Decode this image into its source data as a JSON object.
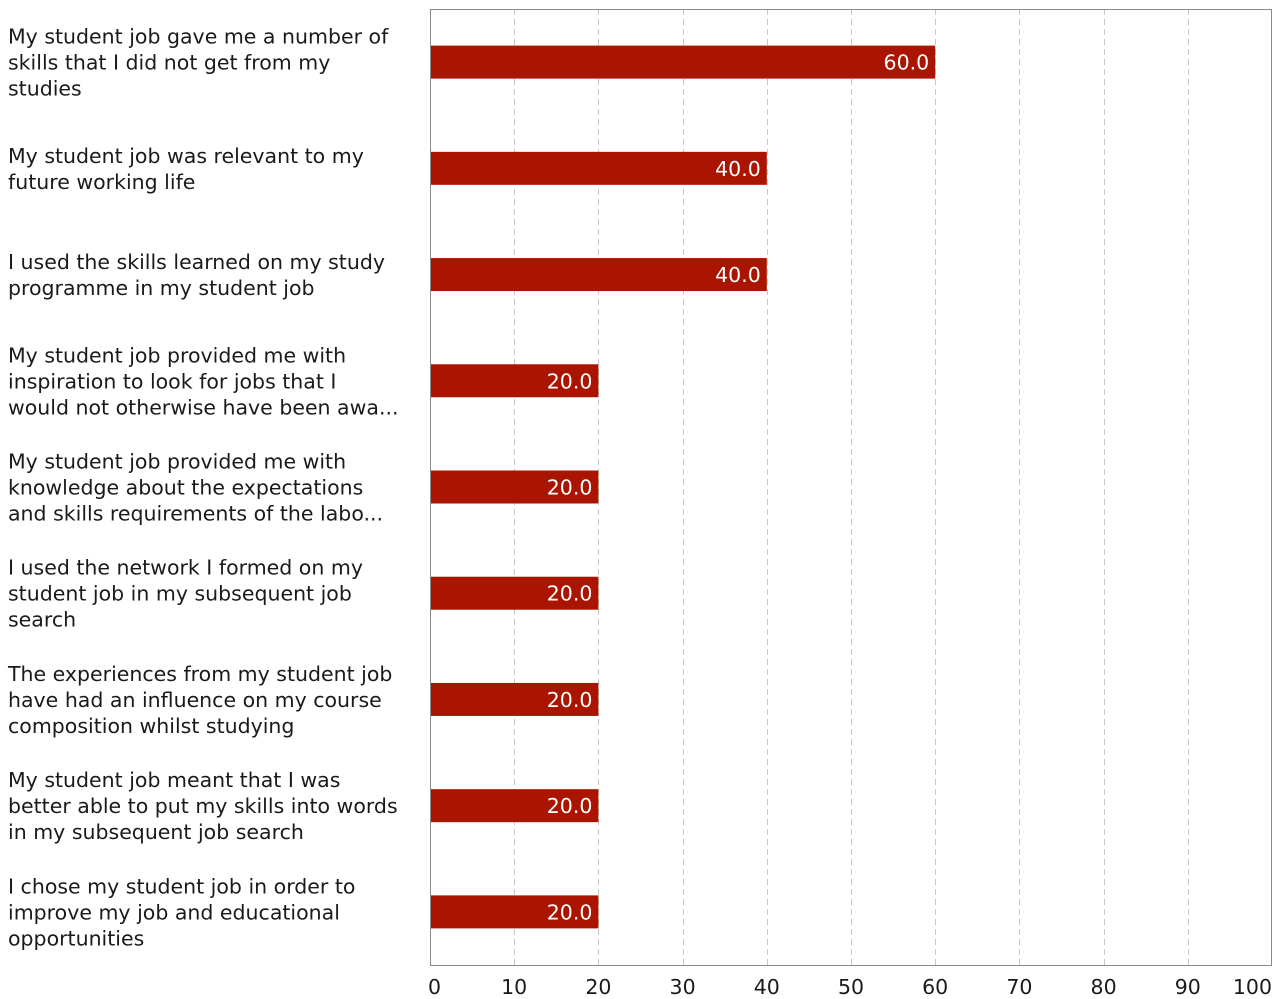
{
  "chart_data": {
    "type": "bar",
    "orientation": "horizontal",
    "categories": [
      [
        "My student job gave me a number of",
        "skills that I did not get from my",
        "studies"
      ],
      [
        "My student job was relevant to my",
        "future working life"
      ],
      [
        "I used the skills learned on my study",
        "programme in my student job"
      ],
      [
        "My student job provided me with",
        "inspiration to look for jobs that I",
        "would not otherwise have been awa..."
      ],
      [
        "My student job provided me with",
        "knowledge about the expectations",
        "and skills requirements of the labo..."
      ],
      [
        "I used the network I formed on my",
        "student job in my subsequent job",
        "search"
      ],
      [
        "The experiences from my student job",
        "have had an influence on my course",
        "composition whilst studying"
      ],
      [
        "My student job meant that I was",
        "better able to put my skills into words",
        "in my subsequent job search"
      ],
      [
        "I chose my student job in order to",
        "improve my job and educational",
        "opportunities"
      ]
    ],
    "values": [
      60.0,
      40.0,
      40.0,
      20.0,
      20.0,
      20.0,
      20.0,
      20.0,
      20.0
    ],
    "value_labels": [
      "60.0",
      "40.0",
      "40.0",
      "20.0",
      "20.0",
      "20.0",
      "20.0",
      "20.0",
      "20.0"
    ],
    "xlim": [
      0,
      100
    ],
    "xticks": [
      0,
      10,
      20,
      30,
      40,
      50,
      60,
      70,
      80,
      90,
      100
    ],
    "xtick_labels": [
      "0",
      "10",
      "20",
      "30",
      "40",
      "50",
      "60",
      "70",
      "80",
      "90",
      "100"
    ],
    "grid": "vertical-dashed",
    "bar_color": "#a91500",
    "grid_color": "#c8c8c8",
    "frame_color": "#8a8a8a"
  }
}
